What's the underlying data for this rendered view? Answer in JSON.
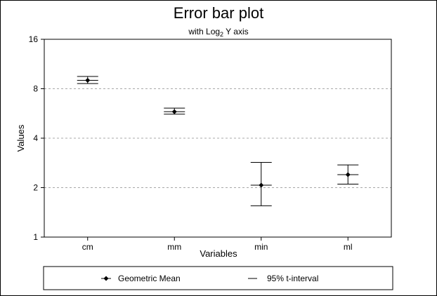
{
  "chart_data": {
    "type": "scatter",
    "title": "Error bar plot",
    "subtitle": {
      "prefix": "with Log",
      "sub": "2",
      "suffix": " Y axis"
    },
    "xlabel": "Variables",
    "ylabel": "Values",
    "y_scale": "log2",
    "ylim": [
      1,
      16
    ],
    "y_ticks": [
      1,
      2,
      4,
      8,
      16
    ],
    "grid": "horizontal-dashed",
    "categories": [
      "cm",
      "mm",
      "min",
      "ml"
    ],
    "series": [
      {
        "name": "Geometric Mean",
        "values": [
          9.0,
          5.8,
          2.07,
          2.4
        ],
        "ci_low": [
          8.6,
          5.6,
          1.55,
          2.1
        ],
        "ci_high": [
          9.5,
          6.1,
          2.85,
          2.75
        ],
        "ci_label": "95% t-interval"
      }
    ],
    "legend": {
      "position": "bottom",
      "items": [
        "Geometric Mean",
        "95% t-interval"
      ]
    }
  }
}
